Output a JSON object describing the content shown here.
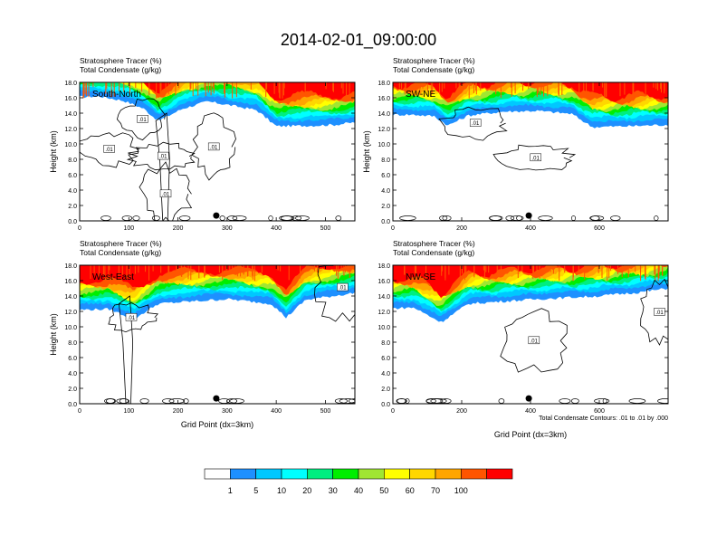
{
  "page": {
    "title": "2014-02-01_09:00:00",
    "contour_note": "Total Condensate Contours: .01 to .01 by .000"
  },
  "colors": {
    "levels": [
      "#ffffff",
      "#1e90ff",
      "#00c8ff",
      "#00ffff",
      "#00ee80",
      "#00ee00",
      "#a0e632",
      "#ffff00",
      "#ffd700",
      "#ffa500",
      "#ff5500",
      "#ff0000"
    ],
    "contour": "#000000",
    "marker": "#000000"
  },
  "colorbar": {
    "labels": [
      "1",
      "5",
      "10",
      "20",
      "30",
      "40",
      "50",
      "60",
      "70",
      "100"
    ]
  },
  "chart_data": [
    {
      "type": "heatmap",
      "header_line1": "Stratosphere Tracer   (%)",
      "header_line2": "Total Condensate   (g/kg)",
      "region_label": "South-North",
      "ylabel": "Height (km)",
      "xlabel": "",
      "xlim": [
        0,
        560
      ],
      "ylim": [
        0,
        18
      ],
      "xticks": [
        0,
        100,
        200,
        300,
        400,
        500
      ],
      "yticks": [
        0.0,
        2.0,
        4.0,
        6.0,
        8.0,
        10.0,
        12.0,
        14.0,
        16.0,
        18.0
      ],
      "marker_x": 278,
      "contour_labels": [
        {
          "text": ".01",
          "x": 128,
          "y": 13.2
        },
        {
          "text": ".01",
          "x": 60,
          "y": 9.3
        },
        {
          "text": ".01",
          "x": 170,
          "y": 8.4
        },
        {
          "text": ".01",
          "x": 273,
          "y": 9.6
        },
        {
          "text": ".01",
          "x": 175,
          "y": 3.5
        }
      ],
      "tracer_base": [
        [
          0,
          16.1
        ],
        [
          40,
          16.2
        ],
        [
          90,
          15.6
        ],
        [
          130,
          14.6
        ],
        [
          160,
          13.0
        ],
        [
          210,
          14.6
        ],
        [
          260,
          15.5
        ],
        [
          300,
          15.1
        ],
        [
          360,
          14.4
        ],
        [
          400,
          12.3
        ],
        [
          480,
          12.4
        ],
        [
          520,
          12.5
        ],
        [
          560,
          12.8
        ]
      ]
    },
    {
      "type": "heatmap",
      "header_line1": "Stratosphere Tracer   (%)",
      "header_line2": "Total Condensate   (g/kg)",
      "region_label": "SW-NE",
      "ylabel": "Height (km)",
      "xlabel": "",
      "xlim": [
        0,
        800
      ],
      "ylim": [
        0,
        18
      ],
      "xticks": [
        0,
        200,
        400,
        600
      ],
      "yticks": [
        0.0,
        2.0,
        4.0,
        6.0,
        8.0,
        10.0,
        12.0,
        14.0,
        16.0,
        18.0
      ],
      "marker_x": 395,
      "contour_labels": [
        {
          "text": ".01",
          "x": 240,
          "y": 12.7
        },
        {
          "text": ".01",
          "x": 415,
          "y": 8.2
        }
      ],
      "tracer_base": [
        [
          0,
          13.8
        ],
        [
          60,
          13.8
        ],
        [
          120,
          13.6
        ],
        [
          160,
          12.4
        ],
        [
          220,
          13.7
        ],
        [
          320,
          14.2
        ],
        [
          420,
          14.3
        ],
        [
          520,
          13.9
        ],
        [
          580,
          12.2
        ],
        [
          680,
          12.3
        ],
        [
          800,
          12.5
        ]
      ]
    },
    {
      "type": "heatmap",
      "header_line1": "Stratosphere Tracer   (%)",
      "header_line2": "Total Condensate   (g/kg)",
      "region_label": "West-East",
      "ylabel": "Height (km)",
      "xlabel": "Grid Point (dx=3km)",
      "xlim": [
        0,
        560
      ],
      "ylim": [
        0,
        18
      ],
      "xticks": [
        0,
        100,
        200,
        300,
        400,
        500
      ],
      "yticks": [
        0.0,
        2.0,
        4.0,
        6.0,
        8.0,
        10.0,
        12.0,
        14.0,
        16.0,
        18.0
      ],
      "marker_x": 278,
      "contour_labels": [
        {
          "text": ".01",
          "x": 105,
          "y": 11.2
        },
        {
          "text": ".01",
          "x": 535,
          "y": 15.1
        }
      ],
      "tracer_base": [
        [
          0,
          12.2
        ],
        [
          60,
          12.3
        ],
        [
          110,
          11.0
        ],
        [
          160,
          13.0
        ],
        [
          300,
          13.6
        ],
        [
          390,
          13.0
        ],
        [
          420,
          11.2
        ],
        [
          460,
          13.5
        ],
        [
          560,
          14.4
        ]
      ]
    },
    {
      "type": "heatmap",
      "header_line1": "Stratosphere Tracer   (%)",
      "header_line2": "Total Condensate   (g/kg)",
      "region_label": "NW-SE",
      "ylabel": "",
      "xlabel": "Grid Point (dx=3km)",
      "xlim": [
        0,
        800
      ],
      "ylim": [
        0,
        18
      ],
      "xticks": [
        0,
        200,
        400,
        600
      ],
      "yticks": [
        0.0,
        2.0,
        4.0,
        6.0,
        8.0,
        10.0,
        12.0,
        14.0,
        16.0,
        18.0
      ],
      "marker_x": 395,
      "contour_labels": [
        {
          "text": ".01",
          "x": 410,
          "y": 8.2
        },
        {
          "text": ".01",
          "x": 775,
          "y": 11.9
        }
      ],
      "tracer_base": [
        [
          0,
          12.4
        ],
        [
          60,
          12.5
        ],
        [
          140,
          10.6
        ],
        [
          220,
          13.0
        ],
        [
          420,
          13.6
        ],
        [
          600,
          14.0
        ],
        [
          720,
          14.5
        ],
        [
          800,
          15.0
        ]
      ]
    }
  ]
}
